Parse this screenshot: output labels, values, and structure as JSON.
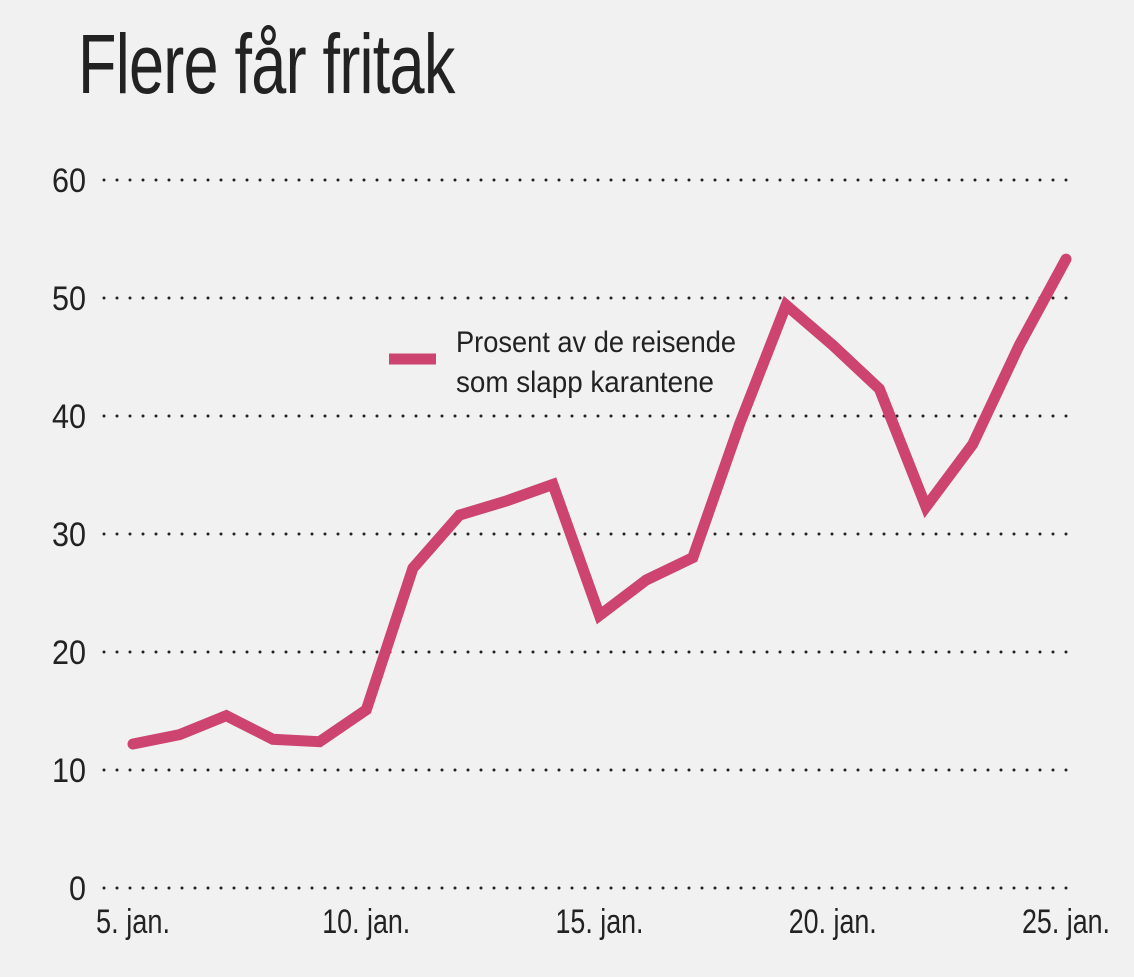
{
  "chart_data": {
    "type": "line",
    "title": "Flere får fritak",
    "x": [
      "5. jan.",
      "6. jan.",
      "7. jan.",
      "8. jan.",
      "9. jan.",
      "10. jan.",
      "11. jan.",
      "12. jan.",
      "13. jan.",
      "14. jan.",
      "15. jan.",
      "16. jan.",
      "17. jan.",
      "18. jan.",
      "19. jan.",
      "20. jan.",
      "21. jan.",
      "22. jan.",
      "23. jan.",
      "24. jan.",
      "25. jan."
    ],
    "x_tick_labels": [
      "5. jan.",
      "10. jan.",
      "15. jan.",
      "20. jan.",
      "25. jan."
    ],
    "y_ticks": [
      0,
      10,
      20,
      30,
      40,
      50,
      60
    ],
    "ylim": [
      0,
      60
    ],
    "grid": "horizontal dotted",
    "legend_position": "top-center",
    "series": [
      {
        "name": "Prosent av de reisende som slapp karantene",
        "name_lines": [
          "Prosent av de reisende",
          "som slapp karantene"
        ],
        "color": "#cc446f",
        "values": [
          12.2,
          13.0,
          14.6,
          12.6,
          12.4,
          15.1,
          27.1,
          31.6,
          32.8,
          34.2,
          23.1,
          26.1,
          28.0,
          39.3,
          49.4,
          46.0,
          42.3,
          32.3,
          37.6,
          46.0,
          53.3
        ]
      }
    ],
    "xlabel": "",
    "ylabel": ""
  }
}
